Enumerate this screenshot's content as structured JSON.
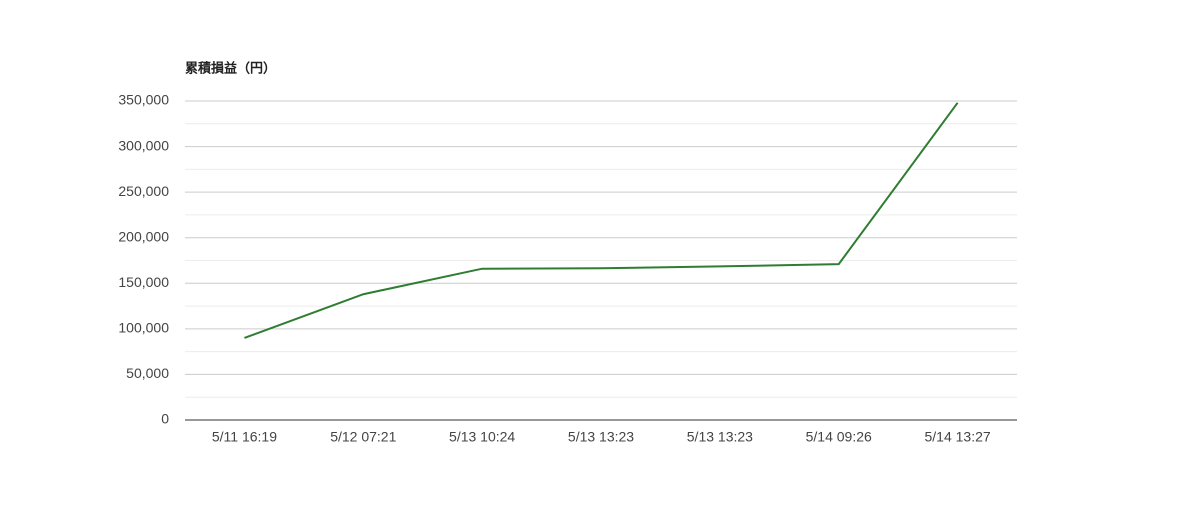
{
  "chart_data": {
    "type": "line",
    "title": "累積損益（円）",
    "categories": [
      "5/11 16:19",
      "5/12 07:21",
      "5/13 10:24",
      "5/13 13:23",
      "5/13 13:23",
      "5/14 09:26",
      "5/14 13:27"
    ],
    "series": [
      {
        "name": "累積損益",
        "color": "#2e7d32",
        "values": [
          90000,
          138000,
          166000,
          166500,
          168500,
          171000,
          348000
        ]
      }
    ],
    "ylim": [
      0,
      350000
    ],
    "yticks": [
      0,
      {
        "value": 50000,
        "label": "50,000"
      },
      {
        "value": 100000,
        "label": "100,000"
      },
      {
        "value": 150000,
        "label": "150,000"
      },
      {
        "value": 200000,
        "label": "200,000"
      },
      {
        "value": 250000,
        "label": "250,000"
      },
      {
        "value": 300000,
        "label": "300,000"
      },
      {
        "value": 350000,
        "label": "350,000"
      }
    ],
    "grid": true,
    "minor_grid": true
  }
}
